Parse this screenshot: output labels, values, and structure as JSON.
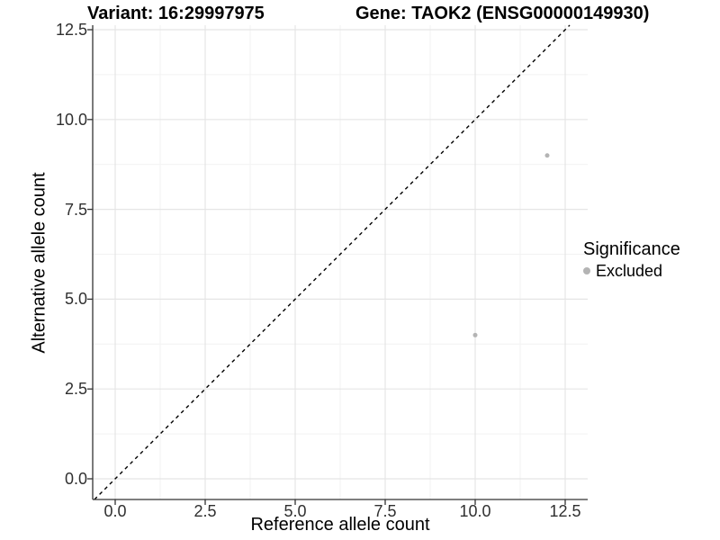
{
  "header": {
    "variant_title": "Variant: 16:29997975",
    "gene_title": "Gene: TAOK2 (ENSG00000149930)"
  },
  "axes": {
    "x_label": "Reference allele count",
    "y_label": "Alternative allele count",
    "x_tick_labels": [
      "0.0",
      "2.5",
      "5.0",
      "7.5",
      "10.0",
      "12.5"
    ],
    "y_tick_labels": [
      "0.0",
      "2.5",
      "5.0",
      "7.5",
      "10.0",
      "12.5"
    ]
  },
  "legend": {
    "title": "Significance",
    "items": [
      {
        "label": "Excluded",
        "color": "#b4b4b4"
      }
    ]
  },
  "colors": {
    "background": "#ffffff",
    "point": "#b4b4b4",
    "grid_major": "#e5e5e5",
    "grid_minor": "#f2f2f2",
    "axis_line": "#333333",
    "tick_mark": "#333333",
    "reference_line": "#000000",
    "text": "#000000"
  },
  "chart_data": {
    "type": "scatter",
    "title_left": "Variant: 16:29997975",
    "title_right": "Gene: TAOK2 (ENSG00000149930)",
    "xlabel": "Reference allele count",
    "ylabel": "Alternative allele count",
    "xlim": [
      -0.63,
      13.13
    ],
    "ylim": [
      -0.58,
      12.63
    ],
    "x_ticks": [
      0,
      2.5,
      5,
      7.5,
      10,
      12.5
    ],
    "y_ticks": [
      0,
      2.5,
      5,
      7.5,
      10,
      12.5
    ],
    "x_minor_ticks": [
      1.25,
      3.75,
      6.25,
      8.75,
      11.25
    ],
    "y_minor_ticks": [
      1.25,
      3.75,
      6.25,
      8.75,
      11.25
    ],
    "grid": true,
    "legend_position": "right",
    "series": [
      {
        "name": "Excluded",
        "color": "#b4b4b4",
        "marker": "circle",
        "points": [
          [
            10,
            4
          ],
          [
            12,
            9
          ]
        ]
      }
    ],
    "reference_line": {
      "slope": 1,
      "intercept": 0,
      "style": "dashed",
      "color": "#000000"
    }
  }
}
